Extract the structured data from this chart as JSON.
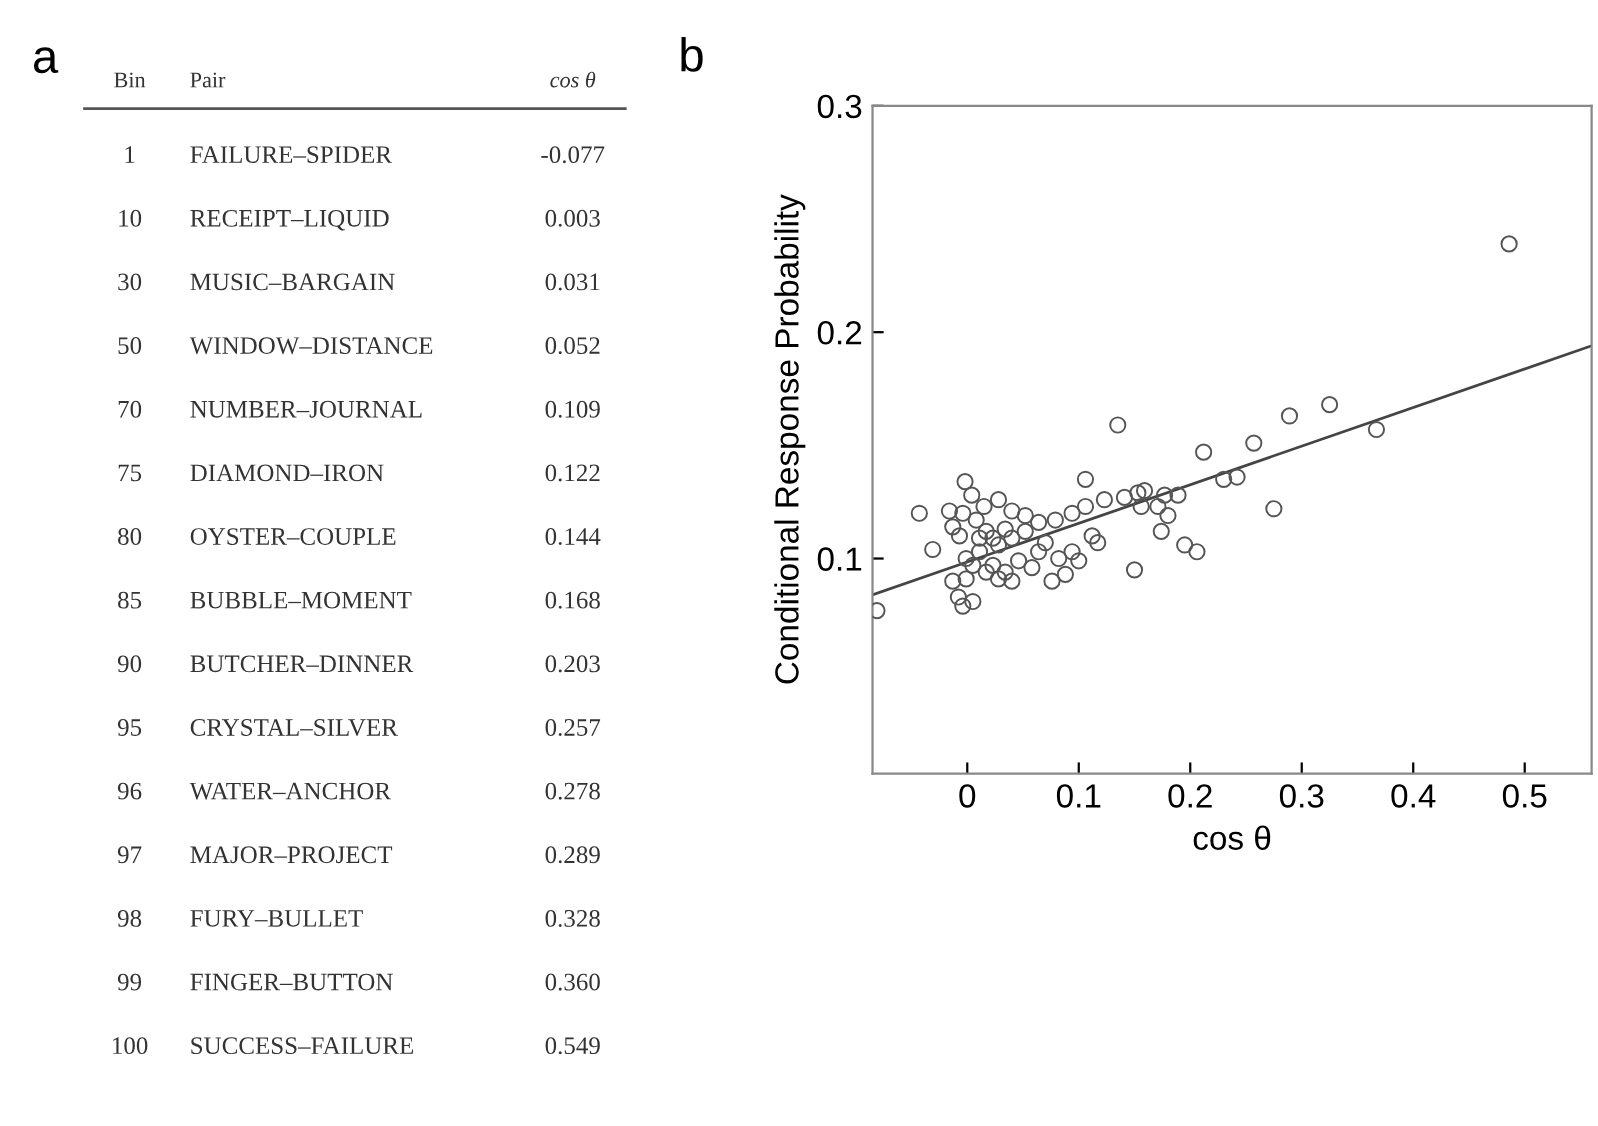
{
  "chart_data": [
    {
      "type": "other",
      "title": "a",
      "categories": [
        "Bin",
        "Pair",
        "cos θ"
      ],
      "cell_labels": [
        [
          "1",
          "FAILURE–SPIDER",
          "-0.077"
        ],
        [
          "10",
          "RECEIPT–LIQUID",
          "0.003"
        ],
        [
          "30",
          "MUSIC–BARGAIN",
          "0.031"
        ],
        [
          "50",
          "WINDOW–DISTANCE",
          "0.052"
        ],
        [
          "70",
          "NUMBER–JOURNAL",
          "0.109"
        ],
        [
          "75",
          "DIAMOND–IRON",
          "0.122"
        ],
        [
          "80",
          "OYSTER–COUPLE",
          "0.144"
        ],
        [
          "85",
          "BUBBLE–MOMENT",
          "0.168"
        ],
        [
          "90",
          "BUTCHER–DINNER",
          "0.203"
        ],
        [
          "95",
          "CRYSTAL–SILVER",
          "0.257"
        ],
        [
          "96",
          "WATER–ANCHOR",
          "0.278"
        ],
        [
          "97",
          "MAJOR–PROJECT",
          "0.289"
        ],
        [
          "98",
          "FURY–BULLET",
          "0.328"
        ],
        [
          "99",
          "FINGER–BUTTON",
          "0.360"
        ],
        [
          "100",
          "SUCCESS–FAILURE",
          "0.549"
        ]
      ]
    },
    {
      "type": "scatter",
      "title": "b",
      "xlabel": "cos θ",
      "ylabel": "Conditional Response Probability",
      "xlim": [
        -0.085,
        0.56
      ],
      "ylim": [
        0.005,
        0.3
      ],
      "xticks": [
        0,
        0.1,
        0.2,
        0.3,
        0.4,
        0.5
      ],
      "yticks": [
        0.1,
        0.2,
        0.3
      ],
      "grid": false,
      "marker": "circle",
      "series": [
        {
          "color": "#555555",
          "x": [
            -0.002,
            0.004,
            -0.004,
            -0.016,
            -0.013,
            -0.043,
            -0.031,
            -0.007,
            0.008,
            0.015,
            0.028,
            0.04,
            0.052,
            0.064,
            0.079,
            0.094,
            0.106,
            0.123,
            0.141,
            0.153,
            0.159,
            0.177,
            0.189,
            0.156,
            0.171,
            0.18,
            0.174,
            0.195,
            0.206,
            0.23,
            0.242,
            0.212,
            0.257,
            0.289,
            0.325,
            0.367,
            0.135,
            0.106,
            0.275,
            0.15,
            -0.001,
            -0.008,
            -0.004,
            0.005,
            -0.001,
            0.011,
            0.023,
            0.034,
            0.028,
            0.046,
            0.058,
            0.076,
            0.088,
            0.1,
            0.112,
            0.117,
            0.094,
            0.07,
            0.052,
            0.04,
            0.023,
            0.011,
            0.017,
            0.034,
            0.064,
            0.082,
            0.005,
            0.017,
            0.028,
            0.04,
            -0.013,
            -0.081,
            0.486
          ],
          "values": [
            0.134,
            0.128,
            0.12,
            0.121,
            0.114,
            0.12,
            0.104,
            0.11,
            0.117,
            0.123,
            0.126,
            0.121,
            0.119,
            0.116,
            0.117,
            0.12,
            0.123,
            0.126,
            0.127,
            0.129,
            0.13,
            0.128,
            0.128,
            0.123,
            0.123,
            0.119,
            0.112,
            0.106,
            0.103,
            0.135,
            0.136,
            0.147,
            0.151,
            0.163,
            0.168,
            0.157,
            0.159,
            0.135,
            0.122,
            0.095,
            0.091,
            0.083,
            0.079,
            0.081,
            0.1,
            0.103,
            0.097,
            0.094,
            0.106,
            0.099,
            0.096,
            0.09,
            0.093,
            0.099,
            0.11,
            0.107,
            0.103,
            0.107,
            0.112,
            0.109,
            0.109,
            0.109,
            0.112,
            0.113,
            0.103,
            0.1,
            0.097,
            0.094,
            0.091,
            0.09,
            0.09,
            0.077,
            0.239
          ]
        },
        {
          "type": "line",
          "color": "#444444",
          "x": [
            -0.085,
            0.56
          ],
          "values": [
            0.084,
            0.194
          ],
          "marker": "none",
          "line_style": "solid"
        }
      ]
    }
  ]
}
